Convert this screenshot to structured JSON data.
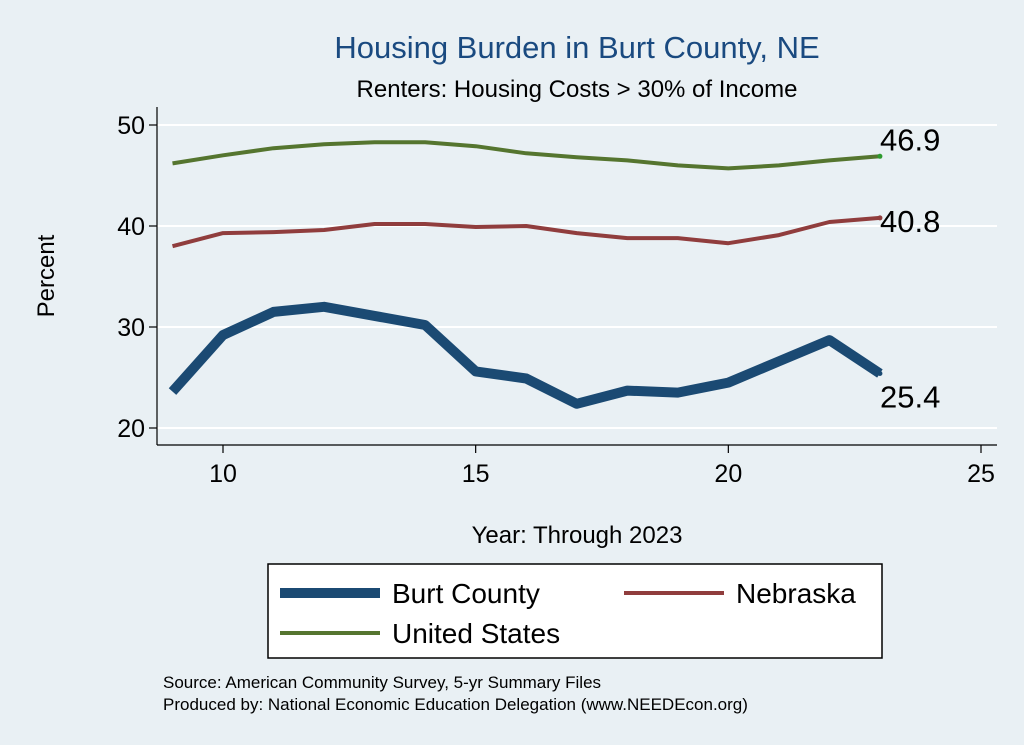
{
  "chart_data": {
    "type": "line",
    "title": "Housing Burden in Burt County, NE",
    "subtitle": "Renters: Housing Costs > 30% of Income",
    "xlabel": "Year: Through 2023",
    "ylabel": "Percent",
    "xlim": [
      9,
      25
    ],
    "ylim": [
      20,
      50
    ],
    "xticks": [
      10,
      15,
      20,
      25
    ],
    "yticks": [
      20,
      30,
      40,
      50
    ],
    "grid": true,
    "legend_position": "bottom",
    "x": [
      9,
      10,
      11,
      12,
      13,
      14,
      15,
      16,
      17,
      18,
      19,
      20,
      21,
      22,
      23
    ],
    "series": [
      {
        "name": "Burt County",
        "color": "#1b4a73",
        "values": [
          23.6,
          29.2,
          31.5,
          32.0,
          31.1,
          30.2,
          25.6,
          24.9,
          22.4,
          23.7,
          23.5,
          24.5,
          26.6,
          28.7,
          25.4
        ],
        "end_label": "25.4"
      },
      {
        "name": "Nebraska",
        "color": "#903d3d",
        "values": [
          38.0,
          39.3,
          39.4,
          39.6,
          40.2,
          40.2,
          39.9,
          40.0,
          39.3,
          38.8,
          38.8,
          38.3,
          39.1,
          40.4,
          40.8
        ],
        "end_label": "40.8"
      },
      {
        "name": "United States",
        "color": "#55752f",
        "values": [
          46.2,
          47.0,
          47.7,
          48.1,
          48.3,
          48.3,
          47.9,
          47.2,
          46.8,
          46.5,
          46.0,
          45.7,
          46.0,
          46.5,
          46.9
        ],
        "end_label": "46.9"
      }
    ],
    "notes": [
      "Source: American Community Survey, 5-yr Summary Files",
      "Produced by: National Economic Education Delegation (www.NEEDEcon.org)"
    ]
  }
}
